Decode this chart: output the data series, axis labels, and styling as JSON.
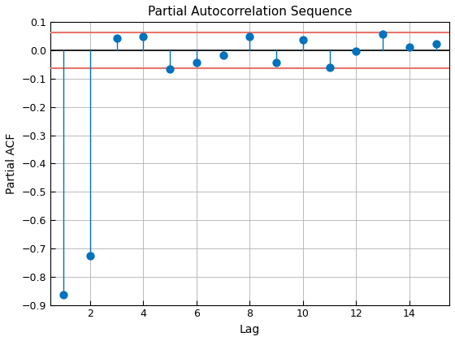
{
  "title": "Partial Autocorrelation Sequence",
  "xlabel": "Lag",
  "ylabel": "Partial ACF",
  "lags": [
    1,
    2,
    3,
    4,
    5,
    6,
    7,
    8,
    9,
    10,
    11,
    12,
    13,
    14,
    15
  ],
  "pacf": [
    -0.865,
    -0.725,
    0.043,
    0.048,
    -0.065,
    -0.043,
    -0.018,
    0.05,
    -0.043,
    0.038,
    -0.06,
    -0.002,
    0.058,
    0.013,
    0.022
  ],
  "confidence_upper": 0.063,
  "confidence_lower": -0.063,
  "ylim": [
    -0.9,
    0.1
  ],
  "xlim": [
    0.5,
    15.5
  ],
  "xticks": [
    2,
    4,
    6,
    8,
    10,
    12,
    14
  ],
  "yticks": [
    0.1,
    0.0,
    -0.1,
    -0.2,
    -0.3,
    -0.4,
    -0.5,
    -0.6,
    -0.7,
    -0.8,
    -0.9
  ],
  "stem_color": "#0072BD",
  "marker_color": "#0072BD",
  "conf_line_color": "#E8746A",
  "zero_line_color": "black",
  "background_color": "#ffffff",
  "grid_color": "#b0b0b0",
  "title_fontsize": 11,
  "label_fontsize": 10,
  "marker_size": 55,
  "stem_linewidth": 1.0,
  "conf_linewidth": 1.5,
  "zero_linewidth": 1.2
}
